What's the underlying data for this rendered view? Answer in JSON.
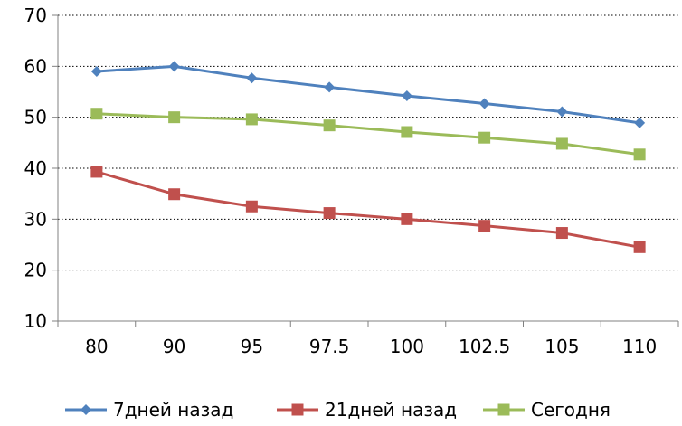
{
  "chart_data": {
    "type": "line",
    "title": "",
    "xlabel": "",
    "ylabel": "",
    "categories": [
      "80",
      "90",
      "95",
      "97.5",
      "100",
      "102.5",
      "105",
      "110"
    ],
    "ylim": [
      10,
      70
    ],
    "yticks": [
      10,
      20,
      30,
      40,
      50,
      60,
      70
    ],
    "grid": "horizontal dotted",
    "legend_position": "bottom",
    "series": [
      {
        "name": "7дней назад",
        "color": "#4F81BD",
        "marker": "diamond",
        "values": [
          59,
          60,
          57.7,
          55.9,
          54.2,
          52.7,
          51.1,
          48.9
        ]
      },
      {
        "name": "21дней назад",
        "color": "#C0504D",
        "marker": "square",
        "values": [
          39.3,
          34.9,
          32.5,
          31.2,
          30.0,
          28.7,
          27.3,
          24.5
        ]
      },
      {
        "name": "Сегодня",
        "color": "#9BBB59",
        "marker": "square",
        "values": [
          50.7,
          50.0,
          49.6,
          48.4,
          47.1,
          46.0,
          44.8,
          42.7
        ]
      }
    ]
  }
}
